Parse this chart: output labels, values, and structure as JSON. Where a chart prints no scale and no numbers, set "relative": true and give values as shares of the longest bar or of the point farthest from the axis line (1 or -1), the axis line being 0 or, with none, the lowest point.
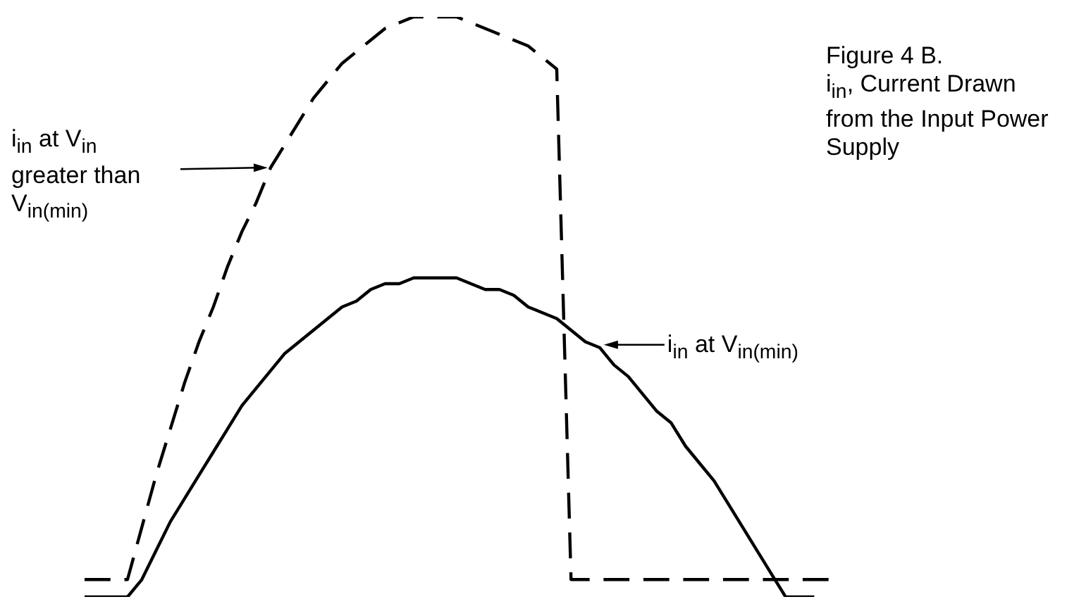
{
  "chart_data": {
    "type": "line",
    "relative": true,
    "title": "Figure 4 B.",
    "subtitle": "i$_{in}$, Current Drawn from the Input Power Supply",
    "annotations": [
      "i$_{in}$ at V$_{in}$ greater than V$_{in(min)}$",
      "i$_{in}$ at V$_{in(min)}$"
    ],
    "tick_labels": false,
    "marker": "none",
    "categories": [
      null,
      null,
      null,
      null,
      null,
      null,
      null,
      null,
      null,
      null,
      null,
      null,
      null,
      null,
      null,
      null,
      null,
      null,
      null,
      null,
      null,
      null,
      null,
      null,
      null,
      null,
      null,
      null,
      null,
      null,
      null,
      null,
      null,
      null,
      null,
      null,
      null,
      null,
      null,
      null,
      null,
      null,
      null,
      null,
      null,
      null,
      null,
      null,
      null,
      null,
      null,
      null,
      null,
      null
    ],
    "series": [
      {
        "color": "#000000",
        "line_style": "dashed",
        "values": [
          0.03,
          0.03,
          0.03,
          0.03,
          0.12,
          0.21,
          0.29,
          0.37,
          0.44,
          0.5,
          0.57,
          0.63,
          0.68,
          0.74,
          0.78,
          0.82,
          0.86,
          0.89,
          0.92,
          0.94,
          0.96,
          0.98,
          0.99,
          1.0,
          1.0,
          1.0,
          1.0,
          0.99,
          0.98,
          0.97,
          0.96,
          0.95,
          0.93,
          0.91,
          0.03,
          0.03,
          0.03,
          0.03,
          0.03,
          0.03,
          0.03,
          0.03,
          0.03,
          0.03,
          0.03,
          0.03,
          0.03,
          0.03,
          0.03,
          0.03,
          0.03,
          0.03,
          0.03,
          null
        ]
      },
      {
        "color": "#000000",
        "line_style": "solid",
        "values": [
          0,
          0,
          0,
          0,
          0.03,
          0.08,
          0.13,
          0.17,
          0.21,
          0.25,
          0.29,
          0.33,
          0.36,
          0.39,
          0.42,
          0.44,
          0.46,
          0.48,
          0.5,
          0.51,
          0.53,
          0.54,
          0.54,
          0.55,
          0.55,
          0.55,
          0.55,
          0.54,
          0.53,
          0.53,
          0.52,
          0.5,
          0.49,
          0.48,
          0.46,
          0.44,
          0.43,
          0.4,
          0.38,
          0.35,
          0.32,
          0.3,
          0.26,
          0.23,
          0.2,
          0.16,
          0.12,
          0.08,
          0.04,
          0,
          0,
          0,
          null,
          null
        ]
      }
    ]
  }
}
